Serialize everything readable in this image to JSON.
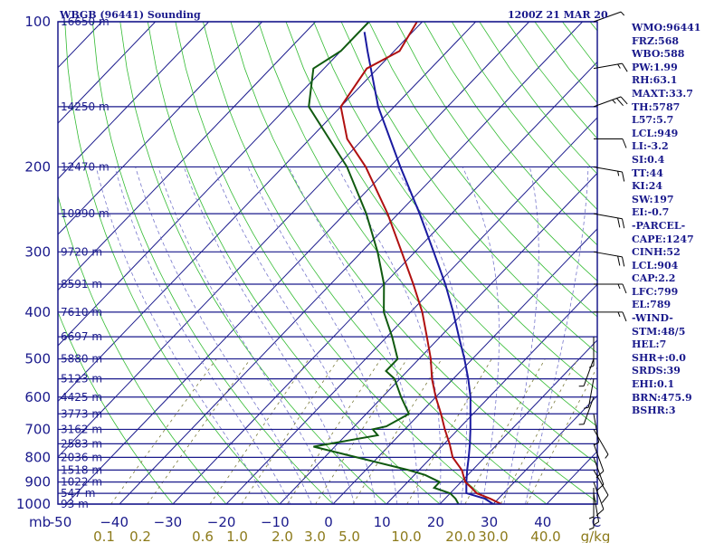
{
  "header": {
    "station": "WBGB (96441) Sounding",
    "time": "1200Z 21 MAR 20"
  },
  "indices": [
    "WMO:96441",
    "FRZ:568",
    "WBO:588",
    "PW:1.99",
    "RH:63.1",
    "MAXT:33.7",
    "TH:5787",
    "L57:5.7",
    "LCL:949",
    "LI:-3.2",
    "SI:0.4",
    "TT:44",
    "KI:24",
    "SW:197",
    "EI:-0.7",
    "-PARCEL-",
    "CAPE:1247",
    "CINH:52",
    "LCL:904",
    "CAP:2.2",
    "LFC:799",
    "EL:789",
    "-WIND-",
    "STM:48/5",
    "HEL:7",
    "SHR+:0.0",
    "SRDS:39",
    "EHI:0.1",
    "BRN:475.9",
    "BSHR:3"
  ],
  "colors": {
    "frame": "#1a1a8c",
    "dry_adiabat": "#33bb33",
    "moist_adiabat": "#7777cc",
    "mixing_ratio": "#7a7a3a",
    "temperature": "#b01010",
    "dewpoint": "#105a10",
    "parcel": "#1a1aa0"
  },
  "chart_data": {
    "type": "skew-t",
    "pressure_levels": [
      100,
      150,
      200,
      250,
      300,
      350,
      400,
      450,
      500,
      550,
      600,
      650,
      700,
      750,
      800,
      850,
      900,
      950,
      1000
    ],
    "pressure_labels": [
      "100",
      "200",
      "300",
      "400",
      "500",
      "600",
      "700",
      "800",
      "900",
      "1000"
    ],
    "height_labels": [
      {
        "p": 100,
        "label": "16650 m"
      },
      {
        "p": 150,
        "label": "14250 m"
      },
      {
        "p": 200,
        "label": "12470 m"
      },
      {
        "p": 250,
        "label": "10990 m"
      },
      {
        "p": 300,
        "label": "9720 m"
      },
      {
        "p": 350,
        "label": "8591 m"
      },
      {
        "p": 400,
        "label": "7610 m"
      },
      {
        "p": 450,
        "label": "6697 m"
      },
      {
        "p": 500,
        "label": "5880 m"
      },
      {
        "p": 550,
        "label": "5123 m"
      },
      {
        "p": 600,
        "label": "4425 m"
      },
      {
        "p": 650,
        "label": "3773 m"
      },
      {
        "p": 700,
        "label": "3162 m"
      },
      {
        "p": 750,
        "label": "2583 m"
      },
      {
        "p": 800,
        "label": "2036 m"
      },
      {
        "p": 850,
        "label": "1518 m"
      },
      {
        "p": 900,
        "label": "1022 m"
      },
      {
        "p": 950,
        "label": "547 m"
      },
      {
        "p": 1000,
        "label": "93 m"
      }
    ],
    "pressure_axis_unit": "mb",
    "temperature_ticks": [
      -50,
      -40,
      -30,
      -20,
      -10,
      0,
      10,
      20,
      30,
      40
    ],
    "temperature_tick_labels": [
      "-50",
      "−40",
      "−30",
      "−20",
      "−10",
      "0",
      "10",
      "20",
      "30",
      "40",
      "C"
    ],
    "mixing_ratio_labels": [
      "0.1",
      "0.2",
      "0.6",
      "1.0",
      "2.0",
      "3.0",
      "5.0",
      "10.0",
      "20.0",
      "30.0",
      "40.0",
      "g/kg"
    ],
    "mixing_ratio_values": [
      0.1,
      0.2,
      0.6,
      1.0,
      2.0,
      3.0,
      5.0,
      10.0,
      20.0,
      30.0,
      40.0
    ],
    "temperature": [
      {
        "p": 1000,
        "t": 31.5
      },
      {
        "p": 975,
        "t": 28.5
      },
      {
        "p": 950,
        "t": 25.0
      },
      {
        "p": 925,
        "t": 23.0
      },
      {
        "p": 900,
        "t": 20.8
      },
      {
        "p": 850,
        "t": 18.0
      },
      {
        "p": 800,
        "t": 14.0
      },
      {
        "p": 750,
        "t": 11.0
      },
      {
        "p": 700,
        "t": 7.5
      },
      {
        "p": 650,
        "t": 4.0
      },
      {
        "p": 600,
        "t": 0.0
      },
      {
        "p": 550,
        "t": -4.0
      },
      {
        "p": 500,
        "t": -7.8
      },
      {
        "p": 450,
        "t": -12.5
      },
      {
        "p": 400,
        "t": -17.8
      },
      {
        "p": 350,
        "t": -24.5
      },
      {
        "p": 300,
        "t": -32.5
      },
      {
        "p": 250,
        "t": -42.0
      },
      {
        "p": 200,
        "t": -54.5
      },
      {
        "p": 175,
        "t": -63.0
      },
      {
        "p": 150,
        "t": -70.0
      },
      {
        "p": 125,
        "t": -72.0
      },
      {
        "p": 115,
        "t": -69.0
      },
      {
        "p": 100,
        "t": -71.0
      }
    ],
    "dewpoint": [
      {
        "p": 1000,
        "t": 23.5
      },
      {
        "p": 975,
        "t": 22.0
      },
      {
        "p": 950,
        "t": 20.0
      },
      {
        "p": 925,
        "t": 16.0
      },
      {
        "p": 900,
        "t": 16.0
      },
      {
        "p": 870,
        "t": 12.0
      },
      {
        "p": 850,
        "t": 8.0
      },
      {
        "p": 760,
        "t": -14.0
      },
      {
        "p": 720,
        "t": -4.0
      },
      {
        "p": 700,
        "t": -6.0
      },
      {
        "p": 690,
        "t": -4.0
      },
      {
        "p": 650,
        "t": -2.0
      },
      {
        "p": 600,
        "t": -6.5
      },
      {
        "p": 550,
        "t": -11.0
      },
      {
        "p": 530,
        "t": -14.0
      },
      {
        "p": 500,
        "t": -14.0
      },
      {
        "p": 450,
        "t": -19.0
      },
      {
        "p": 400,
        "t": -25.0
      },
      {
        "p": 350,
        "t": -30.0
      },
      {
        "p": 300,
        "t": -37.0
      },
      {
        "p": 250,
        "t": -46.0
      },
      {
        "p": 200,
        "t": -58.0
      },
      {
        "p": 150,
        "t": -76.0
      },
      {
        "p": 125,
        "t": -82.0
      },
      {
        "p": 115,
        "t": -80.0
      },
      {
        "p": 100,
        "t": -80.0
      }
    ],
    "parcel": [
      {
        "p": 1000,
        "t": 30.0
      },
      {
        "p": 975,
        "t": 27.5
      },
      {
        "p": 949,
        "t": 23.0
      },
      {
        "p": 900,
        "t": 21.0
      },
      {
        "p": 850,
        "t": 19.0
      },
      {
        "p": 800,
        "t": 17.0
      },
      {
        "p": 750,
        "t": 14.8
      },
      {
        "p": 700,
        "t": 12.3
      },
      {
        "p": 650,
        "t": 9.5
      },
      {
        "p": 600,
        "t": 6.5
      },
      {
        "p": 550,
        "t": 2.8
      },
      {
        "p": 500,
        "t": -1.5
      },
      {
        "p": 450,
        "t": -6.5
      },
      {
        "p": 400,
        "t": -12.0
      },
      {
        "p": 350,
        "t": -18.5
      },
      {
        "p": 300,
        "t": -26.5
      },
      {
        "p": 250,
        "t": -36.0
      },
      {
        "p": 200,
        "t": -48.0
      },
      {
        "p": 150,
        "t": -63.0
      },
      {
        "p": 115,
        "t": -75.0
      },
      {
        "p": 105,
        "t": -79.0
      }
    ],
    "winds": [
      {
        "p": 975,
        "dir": 180,
        "spd": 5
      },
      {
        "p": 950,
        "dir": 170,
        "spd": 5
      },
      {
        "p": 925,
        "dir": 180,
        "spd": 5
      },
      {
        "p": 900,
        "dir": 160,
        "spd": 10
      },
      {
        "p": 850,
        "dir": 150,
        "spd": 10
      },
      {
        "p": 800,
        "dir": 160,
        "spd": 10
      },
      {
        "p": 750,
        "dir": 160,
        "spd": 10
      },
      {
        "p": 700,
        "dir": 150,
        "spd": 5
      },
      {
        "p": 650,
        "dir": 170,
        "spd": 5
      },
      {
        "p": 600,
        "dir": 200,
        "spd": 5
      },
      {
        "p": 550,
        "dir": 190,
        "spd": 5
      },
      {
        "p": 500,
        "dir": 200,
        "spd": 5
      },
      {
        "p": 450,
        "dir": 180,
        "spd": 5
      },
      {
        "p": 400,
        "dir": 90,
        "spd": 15
      },
      {
        "p": 350,
        "dir": 90,
        "spd": 15
      },
      {
        "p": 300,
        "dir": 100,
        "spd": 20
      },
      {
        "p": 250,
        "dir": 100,
        "spd": 20
      },
      {
        "p": 200,
        "dir": 100,
        "spd": 15
      },
      {
        "p": 175,
        "dir": 90,
        "spd": 10
      },
      {
        "p": 150,
        "dir": 70,
        "spd": 25
      },
      {
        "p": 125,
        "dir": 80,
        "spd": 15
      },
      {
        "p": 100,
        "dir": 70,
        "spd": 5
      }
    ]
  }
}
